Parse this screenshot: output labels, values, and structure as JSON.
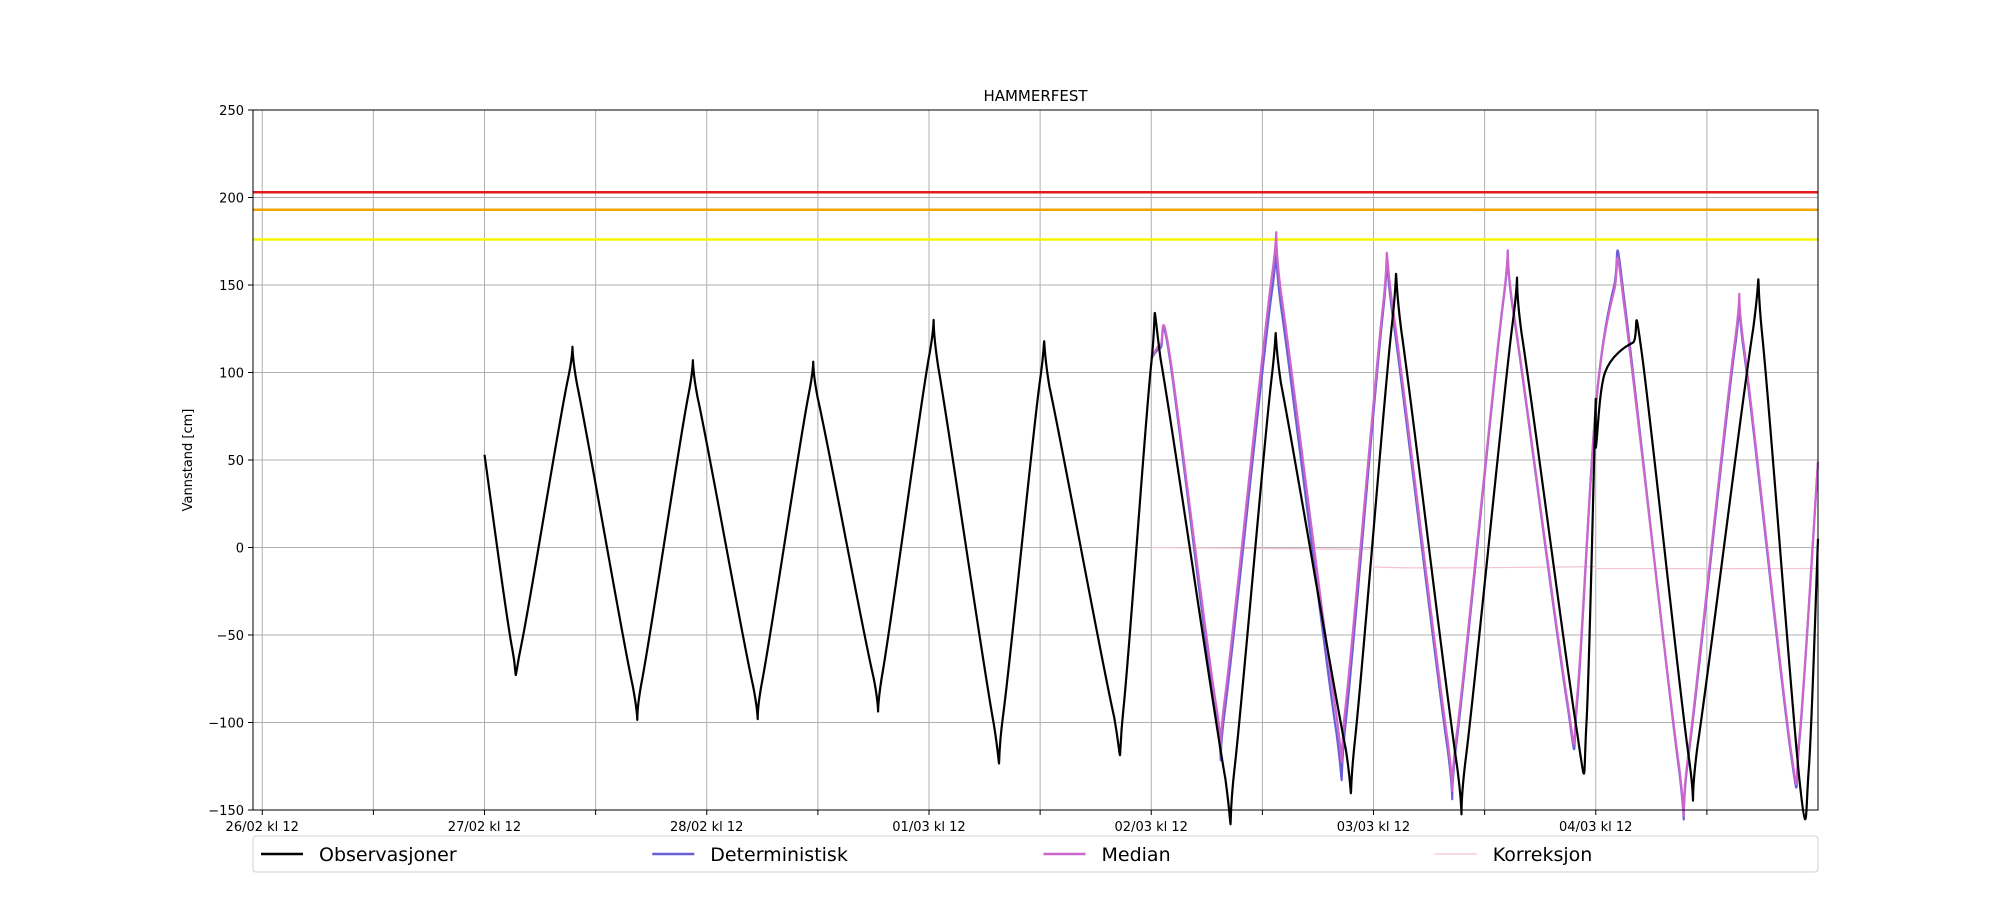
{
  "chart_data": {
    "type": "line",
    "title": "HAMMERFEST",
    "ylabel": "Vannstand [cm]",
    "xlabel": "",
    "ylim": [
      -150,
      250
    ],
    "yticks": [
      -150,
      -100,
      -50,
      0,
      50,
      100,
      150,
      200,
      250
    ],
    "xlim": [
      "2025-02-26T11:00",
      "2025-03-05T12:00"
    ],
    "xticks": [
      {
        "t": "2025-02-26T12:00",
        "label": "26/02 kl 12"
      },
      {
        "t": "2025-02-27T00:00",
        "label": ""
      },
      {
        "t": "2025-02-27T12:00",
        "label": "27/02 kl 12"
      },
      {
        "t": "2025-02-28T00:00",
        "label": ""
      },
      {
        "t": "2025-02-28T12:00",
        "label": "28/02 kl 12"
      },
      {
        "t": "2025-03-01T00:00",
        "label": ""
      },
      {
        "t": "2025-03-01T12:00",
        "label": "01/03 kl 12"
      },
      {
        "t": "2025-03-02T00:00",
        "label": ""
      },
      {
        "t": "2025-03-02T12:00",
        "label": "02/03 kl 12"
      },
      {
        "t": "2025-03-03T00:00",
        "label": ""
      },
      {
        "t": "2025-03-03T12:00",
        "label": "03/03 kl 12"
      },
      {
        "t": "2025-03-04T00:00",
        "label": ""
      },
      {
        "t": "2025-03-04T12:00",
        "label": "04/03 kl 12"
      },
      {
        "t": "2025-03-05T00:00",
        "label": ""
      }
    ],
    "grid": true,
    "legend_position": "bottom",
    "thresholds": [
      {
        "value": 203,
        "color": "#e41a1c"
      },
      {
        "value": 193,
        "color": "#f5a300"
      },
      {
        "value": 176,
        "color": "#f5f500"
      }
    ],
    "series": [
      {
        "name": "Observasjoner",
        "color": "#000000",
        "points": [
          [
            "2025-02-27T12:00",
            53
          ],
          [
            "2025-02-27T15:00",
            -58
          ],
          [
            "2025-02-27T16:00",
            -55
          ],
          [
            "2025-02-27T21:00",
            96
          ],
          [
            "2025-02-27T22:00",
            93
          ],
          [
            "2025-02-28T04:00",
            -79
          ],
          [
            "2025-02-28T05:00",
            -76
          ],
          [
            "2025-02-28T10:00",
            87
          ],
          [
            "2025-02-28T11:00",
            86
          ],
          [
            "2025-02-28T17:00",
            -79
          ],
          [
            "2025-02-28T18:00",
            -76
          ],
          [
            "2025-02-28T23:00",
            87
          ],
          [
            "2025-03-01T00:00",
            85
          ],
          [
            "2025-03-01T06:00",
            -74
          ],
          [
            "2025-03-01T07:00",
            -71
          ],
          [
            "2025-03-01T12:00",
            109
          ],
          [
            "2025-03-01T13:00",
            103
          ],
          [
            "2025-03-01T19:00",
            -101
          ],
          [
            "2025-03-01T20:00",
            -96
          ],
          [
            "2025-03-02T00:00",
            96
          ],
          [
            "2025-03-02T01:00",
            92
          ],
          [
            "2025-03-02T08:00",
            -97
          ],
          [
            "2025-03-02T09:00",
            -92
          ],
          [
            "2025-03-02T12:00",
            105
          ],
          [
            "2025-03-02T13:00",
            108
          ],
          [
            "2025-03-02T20:00",
            -132
          ],
          [
            "2025-03-02T21:00",
            -126
          ],
          [
            "2025-03-03T01:00",
            97
          ],
          [
            "2025-03-03T02:00",
            94
          ],
          [
            "2025-03-03T09:00",
            -115
          ],
          [
            "2025-03-03T10:00",
            -110
          ],
          [
            "2025-03-03T14:00",
            128
          ],
          [
            "2025-03-03T15:00",
            124
          ],
          [
            "2025-03-03T21:00",
            -124
          ],
          [
            "2025-03-03T22:00",
            -119
          ],
          [
            "2025-03-04T03:00",
            127
          ],
          [
            "2025-03-04T04:00",
            122
          ],
          [
            "2025-03-04T10:00",
            -106
          ],
          [
            "2025-03-04T11:00",
            -100
          ],
          [
            "2025-03-04T12:00",
            85
          ],
          [
            "2025-03-04T12:00",
            57
          ],
          [
            "2025-03-04T13:00",
            100
          ],
          [
            "2025-03-04T16:00",
            117
          ],
          [
            "2025-03-04T17:00",
            110
          ],
          [
            "2025-03-04T22:00",
            -118
          ],
          [
            "2025-03-04T23:00",
            -113
          ],
          [
            "2025-03-05T05:00",
            125
          ],
          [
            "2025-03-05T06:00",
            120
          ],
          [
            "2025-03-05T10:00",
            -133
          ],
          [
            "2025-03-05T11:00",
            -127
          ],
          [
            "2025-03-05T12:00",
            5
          ]
        ]
      },
      {
        "name": "Deterministisk",
        "color": "#6a5fd6",
        "points": [
          [
            "2025-03-02T12:00",
            108
          ],
          [
            "2025-03-02T13:00",
            114
          ],
          [
            "2025-03-02T14:00",
            108
          ],
          [
            "2025-03-02T19:00",
            -97
          ],
          [
            "2025-03-02T20:00",
            -91
          ],
          [
            "2025-03-03T01:00",
            145
          ],
          [
            "2025-03-03T02:00",
            138
          ],
          [
            "2025-03-03T08:00",
            -106
          ],
          [
            "2025-03-03T09:00",
            -100
          ],
          [
            "2025-03-03T13:00",
            133
          ],
          [
            "2025-03-03T14:00",
            135
          ],
          [
            "2025-03-03T20:00",
            -115
          ],
          [
            "2025-03-03T21:00",
            -110
          ],
          [
            "2025-03-04T02:00",
            140
          ],
          [
            "2025-03-04T03:00",
            138
          ],
          [
            "2025-03-04T09:00",
            -92
          ],
          [
            "2025-03-04T10:00",
            -88
          ],
          [
            "2025-03-04T12:00",
            80
          ],
          [
            "2025-03-04T14:00",
            150
          ],
          [
            "2025-03-04T15:00",
            145
          ],
          [
            "2025-03-04T21:00",
            -127
          ],
          [
            "2025-03-04T22:00",
            -120
          ],
          [
            "2025-03-05T03:00",
            113
          ],
          [
            "2025-03-05T04:00",
            112
          ],
          [
            "2025-03-05T09:00",
            -115
          ],
          [
            "2025-03-05T10:00",
            -110
          ],
          [
            "2025-03-05T12:00",
            49
          ]
        ]
      },
      {
        "name": "Median",
        "color": "#cc66cc",
        "points": [
          [
            "2025-03-02T12:00",
            108
          ],
          [
            "2025-03-02T13:00",
            116
          ],
          [
            "2025-03-02T14:00",
            110
          ],
          [
            "2025-03-02T19:00",
            -90
          ],
          [
            "2025-03-02T20:00",
            -84
          ],
          [
            "2025-03-03T01:00",
            154
          ],
          [
            "2025-03-03T02:00",
            146
          ],
          [
            "2025-03-03T08:00",
            -96
          ],
          [
            "2025-03-03T09:00",
            -90
          ],
          [
            "2025-03-03T13:00",
            137
          ],
          [
            "2025-03-03T14:00",
            140
          ],
          [
            "2025-03-03T20:00",
            -110
          ],
          [
            "2025-03-03T21:00",
            -106
          ],
          [
            "2025-03-04T02:00",
            141
          ],
          [
            "2025-03-04T03:00",
            139
          ],
          [
            "2025-03-04T09:00",
            -90
          ],
          [
            "2025-03-04T10:00",
            -85
          ],
          [
            "2025-03-04T12:00",
            80
          ],
          [
            "2025-03-04T14:00",
            147
          ],
          [
            "2025-03-04T15:00",
            141
          ],
          [
            "2025-03-04T21:00",
            -125
          ],
          [
            "2025-03-04T22:00",
            -118
          ],
          [
            "2025-03-05T03:00",
            117
          ],
          [
            "2025-03-05T04:00",
            115
          ],
          [
            "2025-03-05T09:00",
            -113
          ],
          [
            "2025-03-05T10:00",
            -108
          ],
          [
            "2025-03-05T12:00",
            49
          ]
        ]
      },
      {
        "name": "Korreksjon",
        "color": "#f2c4cf",
        "points": [
          [
            "2025-03-02T12:00",
            0
          ],
          [
            "2025-03-03T11:00",
            -1
          ],
          [
            "2025-03-03T12:00",
            -1
          ],
          [
            "2025-03-03T12:00",
            -11
          ],
          [
            "2025-03-04T12:00",
            -11
          ],
          [
            "2025-03-04T12:00",
            -12
          ],
          [
            "2025-03-05T12:00",
            -12
          ]
        ]
      }
    ]
  }
}
